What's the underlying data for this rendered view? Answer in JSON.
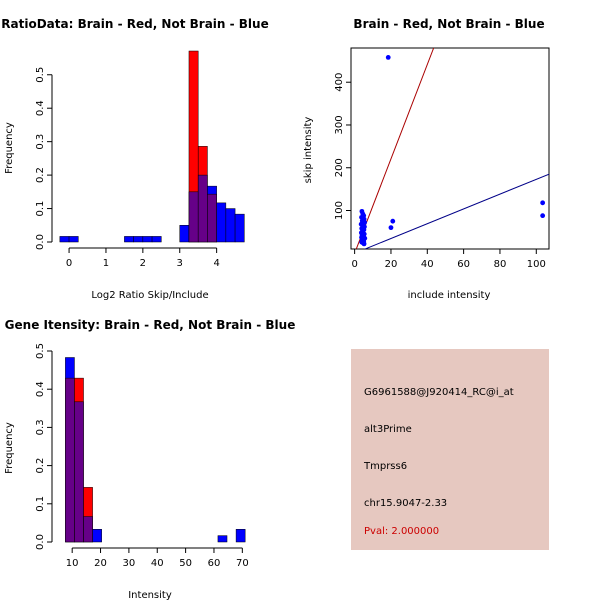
{
  "colors": {
    "red": "#ff0000",
    "blue": "#0000ff",
    "overlap": "#660088",
    "redline": "#aa0000",
    "blueline": "#000088",
    "panel": "#e6c8c0"
  },
  "chart_data": [
    {
      "type": "bar",
      "title": "RatioData: Brain - Red, Not Brain - Blue",
      "xlabel": "Log2 Ratio Skip/Include",
      "ylabel": "Frequency",
      "xlim": [
        -0.3,
        4.85
      ],
      "ylim": [
        0,
        0.58
      ],
      "xticks": [
        "0",
        "1",
        "2",
        "3",
        "4"
      ],
      "yticks": [
        "0.0",
        "0.1",
        "0.2",
        "0.3",
        "0.4",
        "0.5"
      ],
      "bin_width": 0.25,
      "series": [
        {
          "name": "Not Brain",
          "color": "blue",
          "bins": [
            [
              -0.25,
              0.0167
            ],
            [
              0.0,
              0.0167
            ],
            [
              1.5,
              0.0167
            ],
            [
              1.75,
              0.0167
            ],
            [
              2.0,
              0.0167
            ],
            [
              2.25,
              0.0167
            ],
            [
              3.0,
              0.05
            ],
            [
              3.25,
              0.15
            ],
            [
              3.5,
              0.2
            ],
            [
              3.75,
              0.167
            ],
            [
              4.0,
              0.117
            ],
            [
              4.25,
              0.1
            ],
            [
              4.5,
              0.0833
            ]
          ]
        },
        {
          "name": "Brain",
          "color": "red",
          "bins": [
            [
              3.25,
              0.571
            ],
            [
              3.5,
              0.286
            ],
            [
              3.75,
              0.143
            ]
          ]
        }
      ]
    },
    {
      "type": "scatter",
      "title": "Brain - Red, Not Brain - Blue",
      "xlabel": "include intensity",
      "ylabel": "skip intensity",
      "xlim": [
        -2,
        107
      ],
      "ylim": [
        10,
        480
      ],
      "xticks": [
        "0",
        "20",
        "40",
        "60",
        "80",
        "100"
      ],
      "yticks": [
        "100",
        "200",
        "300",
        "400"
      ],
      "points": [
        [
          18.5,
          458
        ],
        [
          103.5,
          118
        ],
        [
          103.5,
          88
        ],
        [
          21,
          75
        ],
        [
          20,
          60
        ],
        [
          4,
          98
        ],
        [
          4.5,
          92
        ],
        [
          5,
          88
        ],
        [
          3.8,
          84
        ],
        [
          5.2,
          80
        ],
        [
          4.2,
          76
        ],
        [
          5.5,
          72
        ],
        [
          3.6,
          68
        ],
        [
          4.8,
          65
        ],
        [
          5.4,
          62
        ],
        [
          3.9,
          58
        ],
        [
          5.1,
          55
        ],
        [
          4.4,
          52
        ],
        [
          3.7,
          48
        ],
        [
          5.3,
          45
        ],
        [
          4.1,
          42
        ],
        [
          4.9,
          40
        ],
        [
          3.8,
          37
        ],
        [
          5.6,
          35
        ],
        [
          4.6,
          33
        ],
        [
          4.2,
          30
        ],
        [
          5.0,
          28
        ],
        [
          3.9,
          26
        ],
        [
          4.7,
          24
        ],
        [
          5.2,
          22
        ]
      ],
      "lines": [
        {
          "name": "red-line",
          "color": "redline",
          "from": [
            0,
            0
          ],
          "to": [
            43.5,
            480
          ]
        },
        {
          "name": "blue-line",
          "color": "blueline",
          "from": [
            0,
            0
          ],
          "to": [
            107,
            185
          ]
        }
      ]
    },
    {
      "type": "bar",
      "title": "Gene Itensity: Brain - Red, Not Brain - Blue",
      "xlabel": "Intensity",
      "ylabel": "Frequency",
      "xlim": [
        5,
        72
      ],
      "ylim": [
        0,
        0.5
      ],
      "xticks": [
        "10",
        "20",
        "30",
        "40",
        "50",
        "60",
        "70"
      ],
      "yticks": [
        "0.0",
        "0.1",
        "0.2",
        "0.3",
        "0.4",
        "0.5"
      ],
      "bin_width": 3.2,
      "series": [
        {
          "name": "Not Brain",
          "color": "blue",
          "bins": [
            [
              7.6,
              0.483
            ],
            [
              10.8,
              0.367
            ],
            [
              14.0,
              0.0667
            ],
            [
              17.2,
              0.0333
            ],
            [
              61.4,
              0.0167
            ],
            [
              67.8,
              0.0333
            ]
          ]
        },
        {
          "name": "Brain",
          "color": "red",
          "bins": [
            [
              7.6,
              0.429
            ],
            [
              10.8,
              0.429
            ],
            [
              14.0,
              0.143
            ]
          ]
        }
      ]
    }
  ],
  "info": {
    "probe_id": "G6961588@J920414_RC@i_at",
    "event_type": "alt3Prime",
    "gene": "Tmprss6",
    "location": "chr15.9047-2.33",
    "pval": "Pval: 2.000000"
  }
}
